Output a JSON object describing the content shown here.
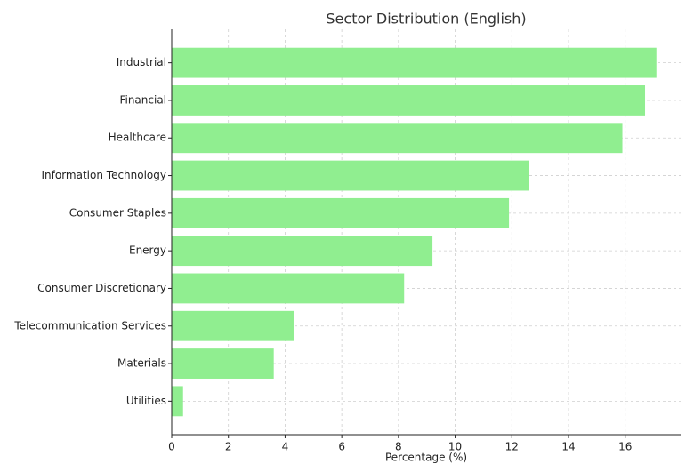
{
  "chart_data": {
    "type": "barh",
    "title": "Sector Distribution (English)",
    "x_label": "Percentage (%)",
    "categories": [
      "Industrial",
      "Financial",
      "Healthcare",
      "Information Technology",
      "Consumer Staples",
      "Energy",
      "Consumer Discretionary",
      "Telecommunication Services",
      "Materials",
      "Utilities"
    ],
    "values": [
      17.1,
      16.7,
      15.9,
      12.6,
      11.9,
      9.2,
      8.2,
      4.3,
      3.6,
      0.4
    ],
    "color": "#90ee90",
    "xlim": [
      0,
      17.955
    ],
    "xticks": [
      0,
      2,
      4,
      6,
      8,
      10,
      12,
      14,
      16
    ],
    "grid": true
  }
}
